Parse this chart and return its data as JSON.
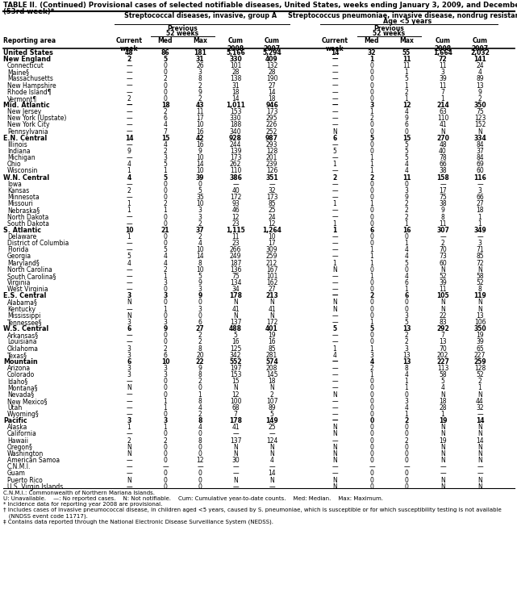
{
  "title_line1": "TABLE II. (Continued) Provisional cases of selected notifiable diseases, United States, weeks ending January 3, 2009, and December 29, 2007",
  "title_line2": "(53rd week)*",
  "col_group1": "Streptococcal diseases, invasive, group A",
  "col_group2_line1": "Streptococcus pneumoniae, invasive disease, nondrug resistant†",
  "col_group2_line2": "Age <5 years",
  "rows": [
    [
      "United States",
      "48",
      "86",
      "181",
      "5,166",
      "5,294",
      "14",
      "32",
      "55",
      "1,664",
      "2,032"
    ],
    [
      "New England",
      "2",
      "5",
      "31",
      "330",
      "409",
      "—",
      "1",
      "11",
      "72",
      "141"
    ],
    [
      "Connecticut",
      "—",
      "0",
      "26",
      "101",
      "132",
      "—",
      "0",
      "11",
      "11",
      "24"
    ],
    [
      "Maine§",
      "—",
      "0",
      "3",
      "28",
      "28",
      "—",
      "0",
      "1",
      "3",
      "4"
    ],
    [
      "Massachusetts",
      "—",
      "2",
      "8",
      "138",
      "190",
      "—",
      "0",
      "5",
      "39",
      "89"
    ],
    [
      "New Hampshire",
      "—",
      "0",
      "2",
      "31",
      "27",
      "—",
      "0",
      "1",
      "11",
      "13"
    ],
    [
      "Rhode Island¶",
      "—",
      "0",
      "9",
      "18",
      "14",
      "—",
      "0",
      "2",
      "7",
      "9"
    ],
    [
      "Vermont¶",
      "2",
      "0",
      "2",
      "14",
      "18",
      "—",
      "0",
      "1",
      "1",
      "2"
    ],
    [
      "Mid. Atlantic",
      "—",
      "18",
      "43",
      "1,011",
      "946",
      "—",
      "3",
      "12",
      "214",
      "350"
    ],
    [
      "New Jersey",
      "—",
      "2",
      "11",
      "153",
      "173",
      "—",
      "1",
      "4",
      "63",
      "75"
    ],
    [
      "New York (Upstate)",
      "—",
      "6",
      "17",
      "330",
      "295",
      "—",
      "2",
      "9",
      "110",
      "123"
    ],
    [
      "New York City",
      "—",
      "4",
      "10",
      "188",
      "226",
      "—",
      "0",
      "6",
      "41",
      "152"
    ],
    [
      "Pennsylvania",
      "—",
      "7",
      "16",
      "340",
      "252",
      "N",
      "0",
      "0",
      "N",
      "N"
    ],
    [
      "E.N. Central",
      "14",
      "15",
      "42",
      "928",
      "987",
      "6",
      "5",
      "15",
      "270",
      "334"
    ],
    [
      "Illinois",
      "—",
      "4",
      "16",
      "244",
      "293",
      "—",
      "0",
      "5",
      "48",
      "84"
    ],
    [
      "Indiana",
      "9",
      "2",
      "9",
      "139",
      "128",
      "5",
      "0",
      "5",
      "40",
      "37"
    ],
    [
      "Michigan",
      "—",
      "3",
      "10",
      "173",
      "201",
      "—",
      "1",
      "5",
      "78",
      "84"
    ],
    [
      "Ohio",
      "4",
      "5",
      "14",
      "262",
      "239",
      "1",
      "1",
      "4",
      "66",
      "69"
    ],
    [
      "Wisconsin",
      "1",
      "1",
      "10",
      "110",
      "126",
      "—",
      "1",
      "4",
      "38",
      "60"
    ],
    [
      "W.N. Central",
      "4",
      "5",
      "39",
      "386",
      "351",
      "2",
      "2",
      "11",
      "158",
      "116"
    ],
    [
      "Iowa",
      "—",
      "0",
      "0",
      "—",
      "—",
      "—",
      "0",
      "0",
      "—",
      "—"
    ],
    [
      "Kansas",
      "2",
      "0",
      "5",
      "40",
      "32",
      "—",
      "0",
      "3",
      "17",
      "3"
    ],
    [
      "Minnesota",
      "—",
      "0",
      "35",
      "172",
      "173",
      "—",
      "0",
      "9",
      "75",
      "66"
    ],
    [
      "Missouri",
      "1",
      "2",
      "10",
      "93",
      "85",
      "1",
      "1",
      "2",
      "38",
      "27"
    ],
    [
      "Nebraska§",
      "1",
      "1",
      "3",
      "46",
      "25",
      "—",
      "0",
      "2",
      "9",
      "18"
    ],
    [
      "North Dakota",
      "—",
      "0",
      "3",
      "12",
      "24",
      "—",
      "0",
      "2",
      "8",
      "1"
    ],
    [
      "South Dakota",
      "—",
      "0",
      "2",
      "23",
      "12",
      "1",
      "0",
      "1",
      "11",
      "1"
    ],
    [
      "S. Atlantic",
      "10",
      "21",
      "37",
      "1,115",
      "1,264",
      "1",
      "6",
      "16",
      "307",
      "349"
    ],
    [
      "Delaware",
      "1",
      "0",
      "2",
      "11",
      "10",
      "—",
      "0",
      "0",
      "—",
      "—"
    ],
    [
      "District of Columbia",
      "—",
      "0",
      "4",
      "23",
      "17",
      "—",
      "0",
      "1",
      "2",
      "3"
    ],
    [
      "Florida",
      "—",
      "5",
      "10",
      "266",
      "309",
      "—",
      "1",
      "4",
      "70",
      "71"
    ],
    [
      "Georgia",
      "5",
      "4",
      "14",
      "249",
      "259",
      "—",
      "1",
      "4",
      "73",
      "85"
    ],
    [
      "Maryland§",
      "4",
      "4",
      "8",
      "187",
      "212",
      "1",
      "1",
      "5",
      "60",
      "72"
    ],
    [
      "North Carolina",
      "—",
      "2",
      "10",
      "136",
      "167",
      "N",
      "0",
      "0",
      "N",
      "N"
    ],
    [
      "South Carolina§",
      "—",
      "1",
      "5",
      "75",
      "101",
      "—",
      "1",
      "4",
      "52",
      "58"
    ],
    [
      "Virginia",
      "—",
      "3",
      "9",
      "134",
      "162",
      "—",
      "0",
      "6",
      "39",
      "52"
    ],
    [
      "West Virginia",
      "—",
      "0",
      "3",
      "34",
      "27",
      "—",
      "0",
      "1",
      "11",
      "8"
    ],
    [
      "E.S. Central",
      "3",
      "3",
      "9",
      "178",
      "213",
      "—",
      "2",
      "6",
      "105",
      "119"
    ],
    [
      "Alabama§",
      "N",
      "0",
      "0",
      "N",
      "N",
      "N",
      "0",
      "0",
      "N",
      "N"
    ],
    [
      "Kentucky",
      "—",
      "1",
      "3",
      "41",
      "41",
      "N",
      "0",
      "0",
      "N",
      "N"
    ],
    [
      "Mississippi",
      "N",
      "0",
      "0",
      "N",
      "N",
      "—",
      "0",
      "3",
      "22",
      "13"
    ],
    [
      "Tennessee§",
      "3",
      "3",
      "6",
      "137",
      "172",
      "—",
      "1",
      "5",
      "83",
      "106"
    ],
    [
      "W.S. Central",
      "6",
      "9",
      "27",
      "488",
      "401",
      "5",
      "5",
      "13",
      "292",
      "350"
    ],
    [
      "Arkansas§",
      "—",
      "0",
      "2",
      "5",
      "19",
      "—",
      "0",
      "2",
      "7",
      "19"
    ],
    [
      "Louisiana",
      "—",
      "0",
      "2",
      "16",
      "16",
      "—",
      "0",
      "2",
      "13",
      "39"
    ],
    [
      "Oklahoma",
      "3",
      "2",
      "8",
      "125",
      "85",
      "1",
      "1",
      "3",
      "70",
      "65"
    ],
    [
      "Texas§",
      "3",
      "6",
      "20",
      "342",
      "281",
      "4",
      "3",
      "13",
      "202",
      "227"
    ],
    [
      "Mountain",
      "6",
      "10",
      "22",
      "552",
      "574",
      "—",
      "4",
      "13",
      "227",
      "259"
    ],
    [
      "Arizona",
      "3",
      "3",
      "9",
      "197",
      "208",
      "—",
      "2",
      "8",
      "113",
      "128"
    ],
    [
      "Colorado",
      "3",
      "3",
      "8",
      "153",
      "145",
      "—",
      "1",
      "4",
      "58",
      "52"
    ],
    [
      "Idaho§",
      "—",
      "0",
      "2",
      "15",
      "18",
      "—",
      "0",
      "1",
      "5",
      "2"
    ],
    [
      "Montana§",
      "N",
      "0",
      "0",
      "N",
      "N",
      "—",
      "0",
      "1",
      "4",
      "1"
    ],
    [
      "Nevada§",
      "—",
      "0",
      "1",
      "12",
      "2",
      "N",
      "0",
      "0",
      "N",
      "N"
    ],
    [
      "New Mexico§",
      "—",
      "1",
      "8",
      "100",
      "107",
      "—",
      "0",
      "3",
      "18",
      "44"
    ],
    [
      "Utah",
      "—",
      "1",
      "4",
      "68",
      "89",
      "—",
      "0",
      "4",
      "28",
      "32"
    ],
    [
      "Wyoming§",
      "—",
      "0",
      "2",
      "7",
      "5",
      "—",
      "0",
      "1",
      "1",
      "—"
    ],
    [
      "Pacific",
      "3",
      "3",
      "8",
      "178",
      "149",
      "—",
      "0",
      "2",
      "19",
      "14"
    ],
    [
      "Alaska",
      "1",
      "1",
      "4",
      "41",
      "25",
      "N",
      "0",
      "0",
      "N",
      "N"
    ],
    [
      "California",
      "—",
      "0",
      "0",
      "—",
      "—",
      "N",
      "0",
      "0",
      "N",
      "N"
    ],
    [
      "Hawaii",
      "2",
      "2",
      "8",
      "137",
      "124",
      "—",
      "0",
      "2",
      "19",
      "14"
    ],
    [
      "Oregon§",
      "N",
      "0",
      "0",
      "N",
      "N",
      "N",
      "0",
      "0",
      "N",
      "N"
    ],
    [
      "Washington",
      "N",
      "0",
      "0",
      "N",
      "N",
      "N",
      "0",
      "0",
      "N",
      "N"
    ],
    [
      "American Samoa",
      "—",
      "0",
      "12",
      "30",
      "4",
      "N",
      "0",
      "0",
      "N",
      "N"
    ],
    [
      "C.N.M.I.",
      "—",
      "—",
      "—",
      "—",
      "—",
      "—",
      "—",
      "—",
      "—",
      "—"
    ],
    [
      "Guam",
      "—",
      "0",
      "0",
      "—",
      "14",
      "—",
      "0",
      "0",
      "—",
      "—"
    ],
    [
      "Puerto Rico",
      "N",
      "0",
      "0",
      "N",
      "N",
      "N",
      "0",
      "0",
      "N",
      "N"
    ],
    [
      "U.S. Virgin Islands",
      "—",
      "0",
      "0",
      "—",
      "—",
      "N",
      "0",
      "0",
      "N",
      "N"
    ]
  ],
  "bold_rows": [
    0,
    1,
    8,
    13,
    19,
    27,
    37,
    42,
    47,
    56
  ],
  "footnotes": [
    "C.N.M.I.: Commonwealth of Northern Mariana Islands.",
    "U: Unavailable.    —: No reported cases.    N: Not notifiable.    Cum: Cumulative year-to-date counts.    Med: Median.    Max: Maximum.",
    "* Incidence data for reporting year 2008 are provisional.",
    "† Includes cases of invasive pneumococcal disease, in children aged <5 years, caused by S. pneumoniae, which is susceptible or for which susceptibility testing is not available",
    "   (NNDSS event code 11717).",
    "‡ Contains data reported through the National Electronic Disease Surveillance System (NEDSS)."
  ]
}
